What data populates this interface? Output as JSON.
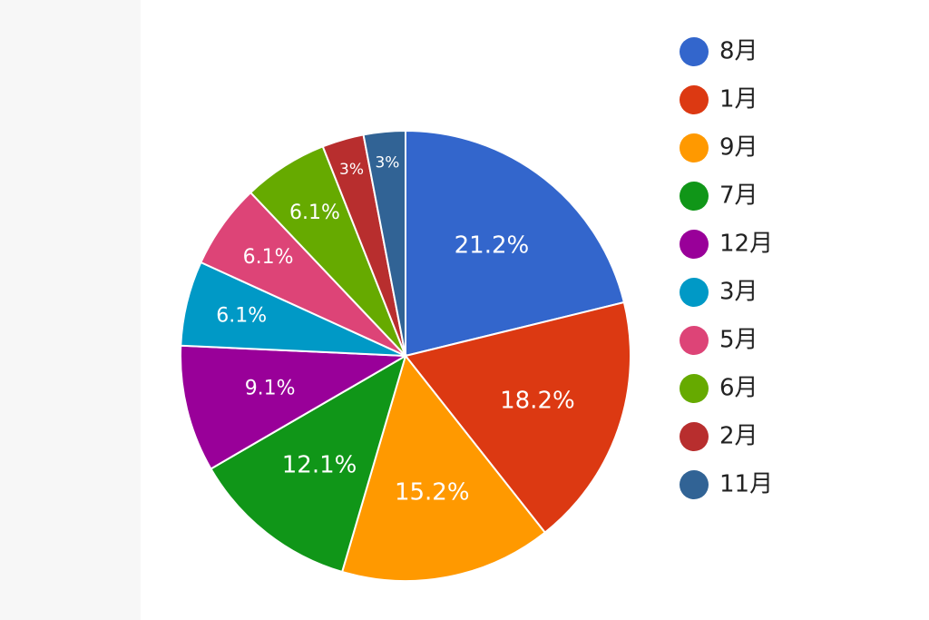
{
  "chart_data": {
    "type": "pie",
    "categories": [
      "8月",
      "1月",
      "9月",
      "7月",
      "12月",
      "3月",
      "5月",
      "6月",
      "2月",
      "11月"
    ],
    "values": [
      21.2,
      18.2,
      15.2,
      12.1,
      9.1,
      6.1,
      6.1,
      6.1,
      3,
      3
    ],
    "value_labels": [
      "21.2%",
      "18.2%",
      "15.2%",
      "12.1%",
      "9.1%",
      "6.1%",
      "6.1%",
      "6.1%",
      "3%",
      "3%"
    ],
    "colors": [
      "#3366cc",
      "#dc3912",
      "#ff9900",
      "#109618",
      "#990099",
      "#0099c6",
      "#dd4477",
      "#66aa00",
      "#b82e2e",
      "#316395"
    ],
    "legend": "right"
  }
}
